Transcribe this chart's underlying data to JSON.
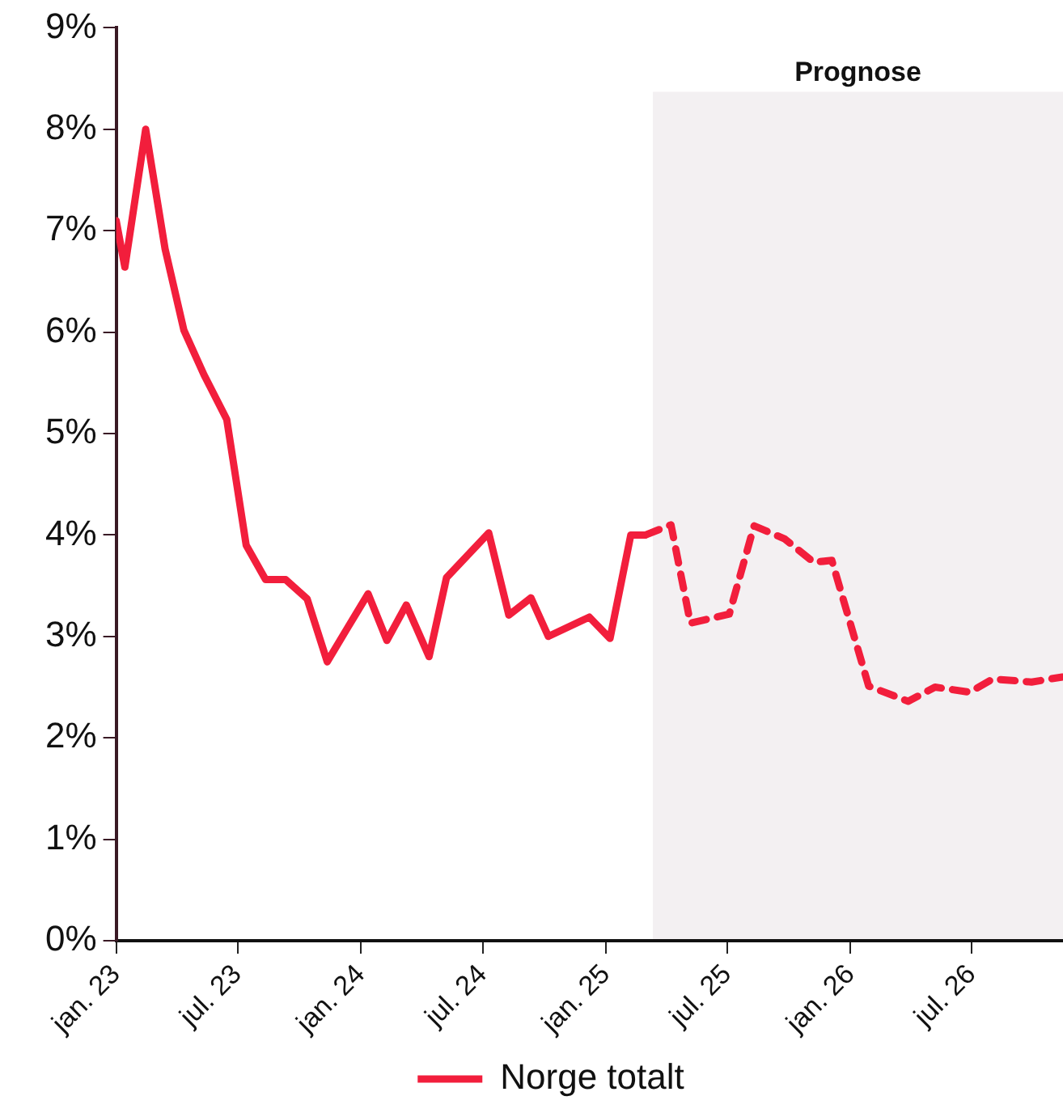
{
  "chart_data": {
    "type": "line",
    "xlim": [
      "2023-01-01",
      "2026-11-14"
    ],
    "ylim": [
      0,
      9
    ],
    "xticks": [
      {
        "value": "2023-01-01",
        "label": "jan. 23"
      },
      {
        "value": "2023-07-01",
        "label": "jul. 23"
      },
      {
        "value": "2024-01-01",
        "label": "jan. 24"
      },
      {
        "value": "2024-07-01",
        "label": "jul. 24"
      },
      {
        "value": "2025-01-01",
        "label": "jan. 25"
      },
      {
        "value": "2025-07-01",
        "label": "jul. 25"
      },
      {
        "value": "2026-01-01",
        "label": "jan. 26"
      },
      {
        "value": "2026-07-01",
        "label": "jul. 26"
      }
    ],
    "yticks": [
      {
        "value": 0,
        "label": "0%"
      },
      {
        "value": 1,
        "label": "1%"
      },
      {
        "value": 2,
        "label": "2%"
      },
      {
        "value": 3,
        "label": "3%"
      },
      {
        "value": 4,
        "label": "4%"
      },
      {
        "value": 5,
        "label": "5%"
      },
      {
        "value": 6,
        "label": "6%"
      },
      {
        "value": 7,
        "label": "7%"
      },
      {
        "value": 8,
        "label": "8%"
      },
      {
        "value": 9,
        "label": "9%"
      }
    ],
    "series": [
      {
        "name": "Norge totalt",
        "color": "#f21e3c",
        "line_style": "solid",
        "x": [
          "2023-01-01",
          "2023-01-14",
          "2023-02-14",
          "2023-03-15",
          "2023-04-12",
          "2023-05-12",
          "2023-06-15",
          "2023-07-14",
          "2023-08-12",
          "2023-09-11",
          "2023-10-13",
          "2023-11-12",
          "2023-12-11",
          "2024-01-12",
          "2024-02-09",
          "2024-03-09",
          "2024-04-12",
          "2024-05-08",
          "2024-07-10",
          "2024-08-09",
          "2024-09-11",
          "2024-10-07",
          "2024-12-07",
          "2025-01-07",
          "2025-02-07",
          "2025-03-01"
        ],
        "values": [
          7.1,
          6.64,
          8.0,
          6.82,
          6.02,
          5.58,
          5.14,
          3.9,
          3.56,
          3.56,
          3.37,
          2.75,
          3.07,
          3.42,
          2.96,
          3.31,
          2.8,
          3.58,
          4.02,
          3.21,
          3.38,
          3.0,
          3.19,
          2.98,
          4.0,
          4.0
        ]
      },
      {
        "color": "#f21e3c",
        "line_style": "dashed",
        "x": [
          "2025-03-01",
          "2025-04-08",
          "2025-05-07",
          "2025-07-04",
          "2025-08-10",
          "2025-09-25",
          "2025-11-07",
          "2025-12-04",
          "2026-01-28",
          "2026-03-28",
          "2026-05-07",
          "2026-06-28",
          "2026-08-01",
          "2026-09-28",
          "2026-11-13"
        ],
        "values": [
          4.0,
          4.1,
          3.13,
          3.22,
          4.09,
          3.96,
          3.73,
          3.75,
          2.51,
          2.36,
          2.5,
          2.45,
          2.58,
          2.55,
          2.6
        ]
      }
    ],
    "bands": [
      {
        "axis": "x",
        "from": "2025-03-12",
        "to": "2026-11-14",
        "label": "Prognose",
        "color": "#f3f0f2"
      }
    ],
    "legend": "bottom",
    "marker": "none"
  }
}
